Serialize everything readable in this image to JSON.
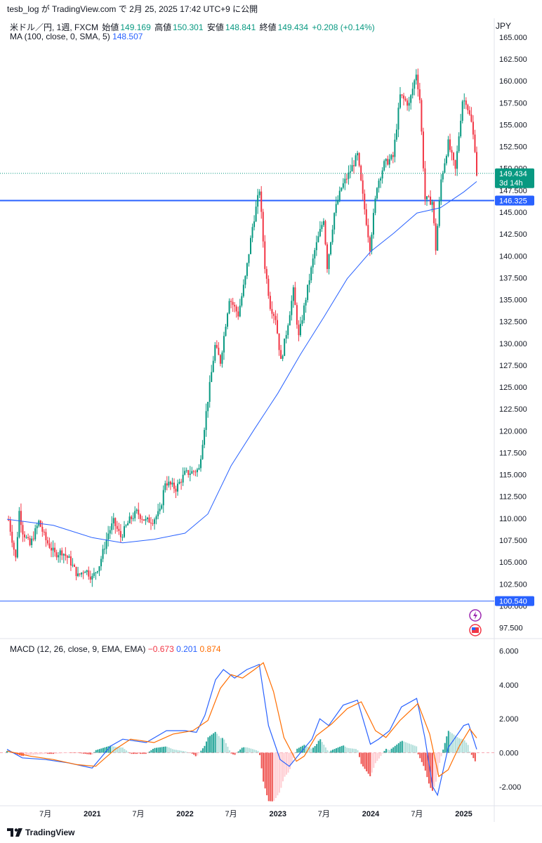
{
  "header": {
    "publish_text": "tesb_log が TradingView.com で 2月 25, 2025 17:42 UTC+9 に公開"
  },
  "legend": {
    "symbol": "米ドル／円, 1週, FXCM",
    "open_label": "始値",
    "open": "149.169",
    "high_label": "高値",
    "high": "150.301",
    "low_label": "安値",
    "low": "148.841",
    "close_label": "終値",
    "close": "149.434",
    "change": "+0.208 (+0.14%)",
    "ma_label": "MA (100, close, 0, SMA, 5)",
    "ma_value": "148.507",
    "macd_label": "MACD (12, 26, close, 9, EMA, EMA)",
    "macd_hist": "−0.673",
    "macd_line": "0.201",
    "macd_signal": "0.874"
  },
  "currency": "JPY",
  "footer": {
    "brand": "TradingView",
    "logo_icon": "tradingview-logo-icon"
  },
  "icons": [
    "lightning-icon",
    "us-flag-icon"
  ],
  "colors": {
    "up": "#089981",
    "down": "#f23645",
    "ma": "#2962ff",
    "signal": "#ff6d00",
    "hline": "#2962ff"
  },
  "chart_data": {
    "type": "candlestick",
    "symbol": "USD/JPY",
    "interval": "1W",
    "price_axis": {
      "ylim": [
        96.5,
        167.0
      ],
      "ticks": [
        "97.500",
        "100.000",
        "102.500",
        "105.000",
        "107.500",
        "110.000",
        "112.500",
        "115.000",
        "117.500",
        "120.000",
        "122.500",
        "125.000",
        "127.500",
        "130.000",
        "132.500",
        "135.000",
        "137.500",
        "140.000",
        "142.500",
        "145.000",
        "147.500",
        "150.000",
        "152.500",
        "155.000",
        "157.500",
        "160.000",
        "162.500",
        "165.000"
      ]
    },
    "macd_axis": {
      "ylim": [
        -3.0,
        6.6
      ],
      "ticks": [
        "-2.000",
        "0.000",
        "2.000",
        "4.000",
        "6.000"
      ]
    },
    "x_axis": {
      "xlim": [
        "2020-02-01",
        "2025-05-01"
      ],
      "ticks": [
        {
          "date": "2020-07-01",
          "label": "7月"
        },
        {
          "date": "2021-01-01",
          "label": "2021"
        },
        {
          "date": "2021-07-01",
          "label": "7月"
        },
        {
          "date": "2022-01-01",
          "label": "2022"
        },
        {
          "date": "2022-07-01",
          "label": "7月"
        },
        {
          "date": "2023-01-01",
          "label": "2023"
        },
        {
          "date": "2023-07-01",
          "label": "7月"
        },
        {
          "date": "2024-01-01",
          "label": "2024"
        },
        {
          "date": "2024-07-01",
          "label": "7月"
        },
        {
          "date": "2025-01-01",
          "label": "2025"
        }
      ]
    },
    "last_price": {
      "value": 149.434,
      "label": "149.434",
      "countdown": "3d 14h"
    },
    "horizontal_lines": [
      {
        "value": 146.325,
        "label": "146.325",
        "style": "thick"
      },
      {
        "value": 100.54,
        "label": "100.540",
        "style": "thin"
      }
    ],
    "price_series": {
      "name": "USD/JPY close (approx.)",
      "points": [
        [
          "2020-02-07",
          109.8
        ],
        [
          "2020-03-06",
          105.4
        ],
        [
          "2020-03-20",
          110.8
        ],
        [
          "2020-04-03",
          108.5
        ],
        [
          "2020-05-01",
          106.9
        ],
        [
          "2020-06-05",
          109.6
        ],
        [
          "2020-07-03",
          107.5
        ],
        [
          "2020-08-07",
          105.9
        ],
        [
          "2020-09-04",
          106.2
        ],
        [
          "2020-10-02",
          105.3
        ],
        [
          "2020-11-06",
          103.4
        ],
        [
          "2020-12-04",
          104.2
        ],
        [
          "2021-01-01",
          103.2
        ],
        [
          "2021-01-29",
          104.7
        ],
        [
          "2021-03-05",
          108.3
        ],
        [
          "2021-03-26",
          109.6
        ],
        [
          "2021-04-23",
          107.9
        ],
        [
          "2021-05-28",
          109.8
        ],
        [
          "2021-06-25",
          110.7
        ],
        [
          "2021-07-30",
          109.7
        ],
        [
          "2021-08-27",
          109.8
        ],
        [
          "2021-09-24",
          110.7
        ],
        [
          "2021-10-15",
          114.2
        ],
        [
          "2021-11-26",
          113.4
        ],
        [
          "2021-12-31",
          115.1
        ],
        [
          "2022-01-28",
          115.3
        ],
        [
          "2022-02-25",
          115.6
        ],
        [
          "2022-03-25",
          122.1
        ],
        [
          "2022-04-29",
          129.7
        ],
        [
          "2022-05-20",
          127.9
        ],
        [
          "2022-06-24",
          135.2
        ],
        [
          "2022-07-29",
          133.3
        ],
        [
          "2022-08-26",
          137.5
        ],
        [
          "2022-09-23",
          143.3
        ],
        [
          "2022-10-21",
          147.6
        ],
        [
          "2022-11-11",
          138.8
        ],
        [
          "2022-12-02",
          134.3
        ],
        [
          "2022-12-23",
          132.9
        ],
        [
          "2023-01-13",
          127.9
        ],
        [
          "2023-02-03",
          131.2
        ],
        [
          "2023-03-03",
          136.0
        ],
        [
          "2023-03-24",
          130.7
        ],
        [
          "2023-04-28",
          136.3
        ],
        [
          "2023-05-26",
          140.6
        ],
        [
          "2023-06-30",
          144.3
        ],
        [
          "2023-07-14",
          138.8
        ],
        [
          "2023-08-11",
          144.9
        ],
        [
          "2023-09-08",
          147.8
        ],
        [
          "2023-10-06",
          149.3
        ],
        [
          "2023-11-10",
          151.5
        ],
        [
          "2023-12-01",
          146.8
        ],
        [
          "2023-12-29",
          141.0
        ],
        [
          "2024-01-26",
          148.1
        ],
        [
          "2024-02-23",
          150.5
        ],
        [
          "2024-03-29",
          151.3
        ],
        [
          "2024-04-26",
          158.3
        ],
        [
          "2024-05-31",
          157.3
        ],
        [
          "2024-06-28",
          160.9
        ],
        [
          "2024-07-12",
          157.9
        ],
        [
          "2024-08-02",
          146.5
        ],
        [
          "2024-08-30",
          146.2
        ],
        [
          "2024-09-13",
          140.8
        ],
        [
          "2024-10-04",
          148.7
        ],
        [
          "2024-11-01",
          152.9
        ],
        [
          "2024-11-29",
          149.8
        ],
        [
          "2024-12-27",
          157.8
        ],
        [
          "2025-01-10",
          157.7
        ],
        [
          "2025-01-31",
          155.2
        ],
        [
          "2025-02-14",
          152.3
        ],
        [
          "2025-02-21",
          149.4
        ]
      ]
    },
    "ma_series": {
      "name": "MA 100",
      "points": [
        [
          "2020-02-01",
          109.9
        ],
        [
          "2020-08-01",
          109.2
        ],
        [
          "2021-01-01",
          107.8
        ],
        [
          "2021-05-01",
          107.2
        ],
        [
          "2021-09-01",
          107.6
        ],
        [
          "2022-01-01",
          108.3
        ],
        [
          "2022-04-01",
          110.5
        ],
        [
          "2022-07-01",
          116.0
        ],
        [
          "2022-10-01",
          120.2
        ],
        [
          "2023-01-01",
          124.3
        ],
        [
          "2023-04-01",
          128.8
        ],
        [
          "2023-07-01",
          133.0
        ],
        [
          "2023-10-01",
          137.4
        ],
        [
          "2024-01-01",
          140.5
        ],
        [
          "2024-04-01",
          142.6
        ],
        [
          "2024-07-01",
          144.9
        ],
        [
          "2024-10-01",
          145.5
        ],
        [
          "2025-01-01",
          147.3
        ],
        [
          "2025-02-21",
          148.5
        ]
      ]
    },
    "macd_series": {
      "name": "MACD",
      "points": [
        [
          "2020-02-01",
          0.2
        ],
        [
          "2020-04-01",
          -0.3
        ],
        [
          "2020-07-01",
          -0.4
        ],
        [
          "2020-10-01",
          -0.6
        ],
        [
          "2021-01-01",
          -0.9
        ],
        [
          "2021-03-15",
          0.4
        ],
        [
          "2021-05-01",
          0.8
        ],
        [
          "2021-08-01",
          0.6
        ],
        [
          "2021-10-20",
          1.3
        ],
        [
          "2022-01-01",
          1.3
        ],
        [
          "2022-02-15",
          1.2
        ],
        [
          "2022-03-20",
          2.2
        ],
        [
          "2022-05-01",
          4.3
        ],
        [
          "2022-06-01",
          4.9
        ],
        [
          "2022-07-15",
          4.4
        ],
        [
          "2022-09-01",
          4.9
        ],
        [
          "2022-10-20",
          5.2
        ],
        [
          "2022-11-25",
          1.6
        ],
        [
          "2023-01-10",
          -0.4
        ],
        [
          "2023-02-15",
          -0.8
        ],
        [
          "2023-03-20",
          -0.2
        ],
        [
          "2023-05-15",
          0.8
        ],
        [
          "2023-06-15",
          2.0
        ],
        [
          "2023-07-20",
          1.6
        ],
        [
          "2023-09-15",
          2.8
        ],
        [
          "2023-11-10",
          3.1
        ],
        [
          "2023-12-31",
          0.5
        ],
        [
          "2024-02-01",
          0.8
        ],
        [
          "2024-03-15",
          1.3
        ],
        [
          "2024-05-01",
          2.7
        ],
        [
          "2024-06-30",
          3.2
        ],
        [
          "2024-08-01",
          0.9
        ],
        [
          "2024-09-01",
          -2.0
        ],
        [
          "2024-09-20",
          -2.5
        ],
        [
          "2024-11-01",
          0.3
        ],
        [
          "2025-01-01",
          1.6
        ],
        [
          "2025-01-20",
          1.7
        ],
        [
          "2025-02-21",
          0.2
        ]
      ]
    },
    "signal_series": {
      "name": "Signal",
      "points": [
        [
          "2020-02-01",
          0.1
        ],
        [
          "2020-05-01",
          -0.2
        ],
        [
          "2020-08-01",
          -0.4
        ],
        [
          "2020-11-01",
          -0.7
        ],
        [
          "2021-01-15",
          -0.8
        ],
        [
          "2021-04-01",
          0.2
        ],
        [
          "2021-06-01",
          0.8
        ],
        [
          "2021-09-01",
          0.6
        ],
        [
          "2021-11-15",
          1.1
        ],
        [
          "2022-02-01",
          1.3
        ],
        [
          "2022-04-01",
          1.9
        ],
        [
          "2022-05-20",
          3.8
        ],
        [
          "2022-07-01",
          4.6
        ],
        [
          "2022-08-15",
          4.4
        ],
        [
          "2022-10-01",
          4.9
        ],
        [
          "2022-11-05",
          5.3
        ],
        [
          "2022-12-15",
          3.6
        ],
        [
          "2023-01-25",
          0.9
        ],
        [
          "2023-03-15",
          -0.5
        ],
        [
          "2023-04-15",
          -0.2
        ],
        [
          "2023-06-01",
          1.0
        ],
        [
          "2023-08-01",
          1.7
        ],
        [
          "2023-10-01",
          2.6
        ],
        [
          "2023-11-25",
          3.0
        ],
        [
          "2024-01-20",
          1.3
        ],
        [
          "2024-03-01",
          0.9
        ],
        [
          "2024-04-25",
          1.9
        ],
        [
          "2024-07-05",
          2.9
        ],
        [
          "2024-08-20",
          1.1
        ],
        [
          "2024-09-25",
          -1.4
        ],
        [
          "2024-11-01",
          -1.0
        ],
        [
          "2024-12-15",
          0.4
        ],
        [
          "2025-01-25",
          1.4
        ],
        [
          "2025-02-21",
          0.87
        ]
      ]
    }
  }
}
